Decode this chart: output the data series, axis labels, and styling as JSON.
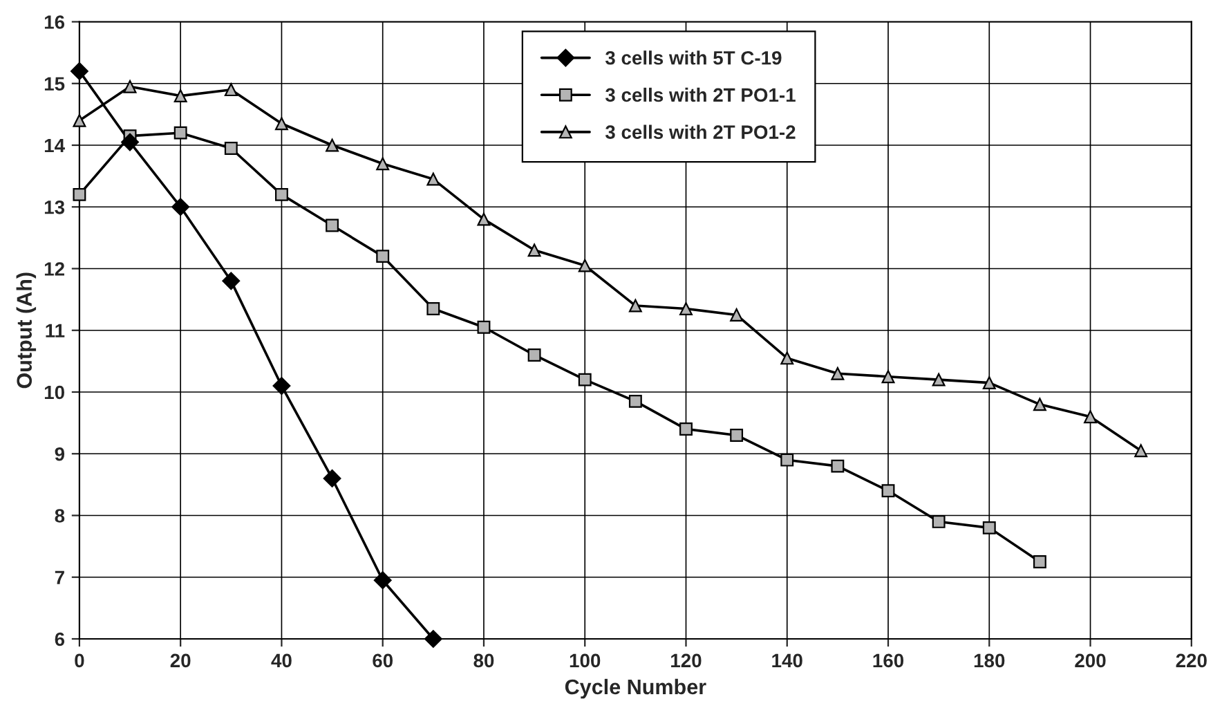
{
  "chart_data": {
    "type": "line",
    "xlabel": "Cycle Number",
    "ylabel": "Output (Ah)",
    "xlim": [
      0,
      220
    ],
    "xticks": [
      0,
      20,
      40,
      60,
      80,
      100,
      120,
      140,
      160,
      180,
      200,
      220
    ],
    "ylim": [
      6,
      16
    ],
    "yticks": [
      6,
      7,
      8,
      9,
      10,
      11,
      12,
      13,
      14,
      15,
      16
    ],
    "grid": true,
    "legend": "top",
    "series": [
      {
        "name": "3 cells with 5T C-19",
        "color": "#000000",
        "marker": "diamond",
        "x": [
          0,
          10,
          20,
          30,
          40,
          50,
          60,
          70
        ],
        "values": [
          15.2,
          14.05,
          13.0,
          11.8,
          10.1,
          8.6,
          6.95,
          6.0
        ]
      },
      {
        "name": "3 cells with 2T PO1-1",
        "color": "#b4b4b4",
        "marker": "square",
        "x": [
          0,
          10,
          20,
          30,
          40,
          50,
          60,
          70,
          80,
          90,
          100,
          110,
          120,
          130,
          140,
          150,
          160,
          170,
          180,
          190
        ],
        "values": [
          13.2,
          14.15,
          14.2,
          13.95,
          13.2,
          12.7,
          12.2,
          11.35,
          11.05,
          10.6,
          10.2,
          9.85,
          9.4,
          9.3,
          8.9,
          8.8,
          8.4,
          7.9,
          7.8,
          7.25
        ]
      },
      {
        "name": "3 cells with 2T PO1-2",
        "color": "#b4b4b4",
        "marker": "triangle",
        "x": [
          0,
          10,
          20,
          30,
          40,
          50,
          60,
          70,
          80,
          90,
          100,
          110,
          120,
          130,
          140,
          150,
          160,
          170,
          180,
          190,
          200,
          210
        ],
        "values": [
          14.4,
          14.95,
          14.8,
          14.9,
          14.35,
          14.0,
          13.7,
          13.45,
          12.8,
          12.3,
          12.05,
          11.4,
          11.35,
          11.25,
          10.55,
          10.3,
          10.25,
          10.2,
          10.15,
          9.8,
          9.6,
          9.05
        ]
      }
    ]
  }
}
